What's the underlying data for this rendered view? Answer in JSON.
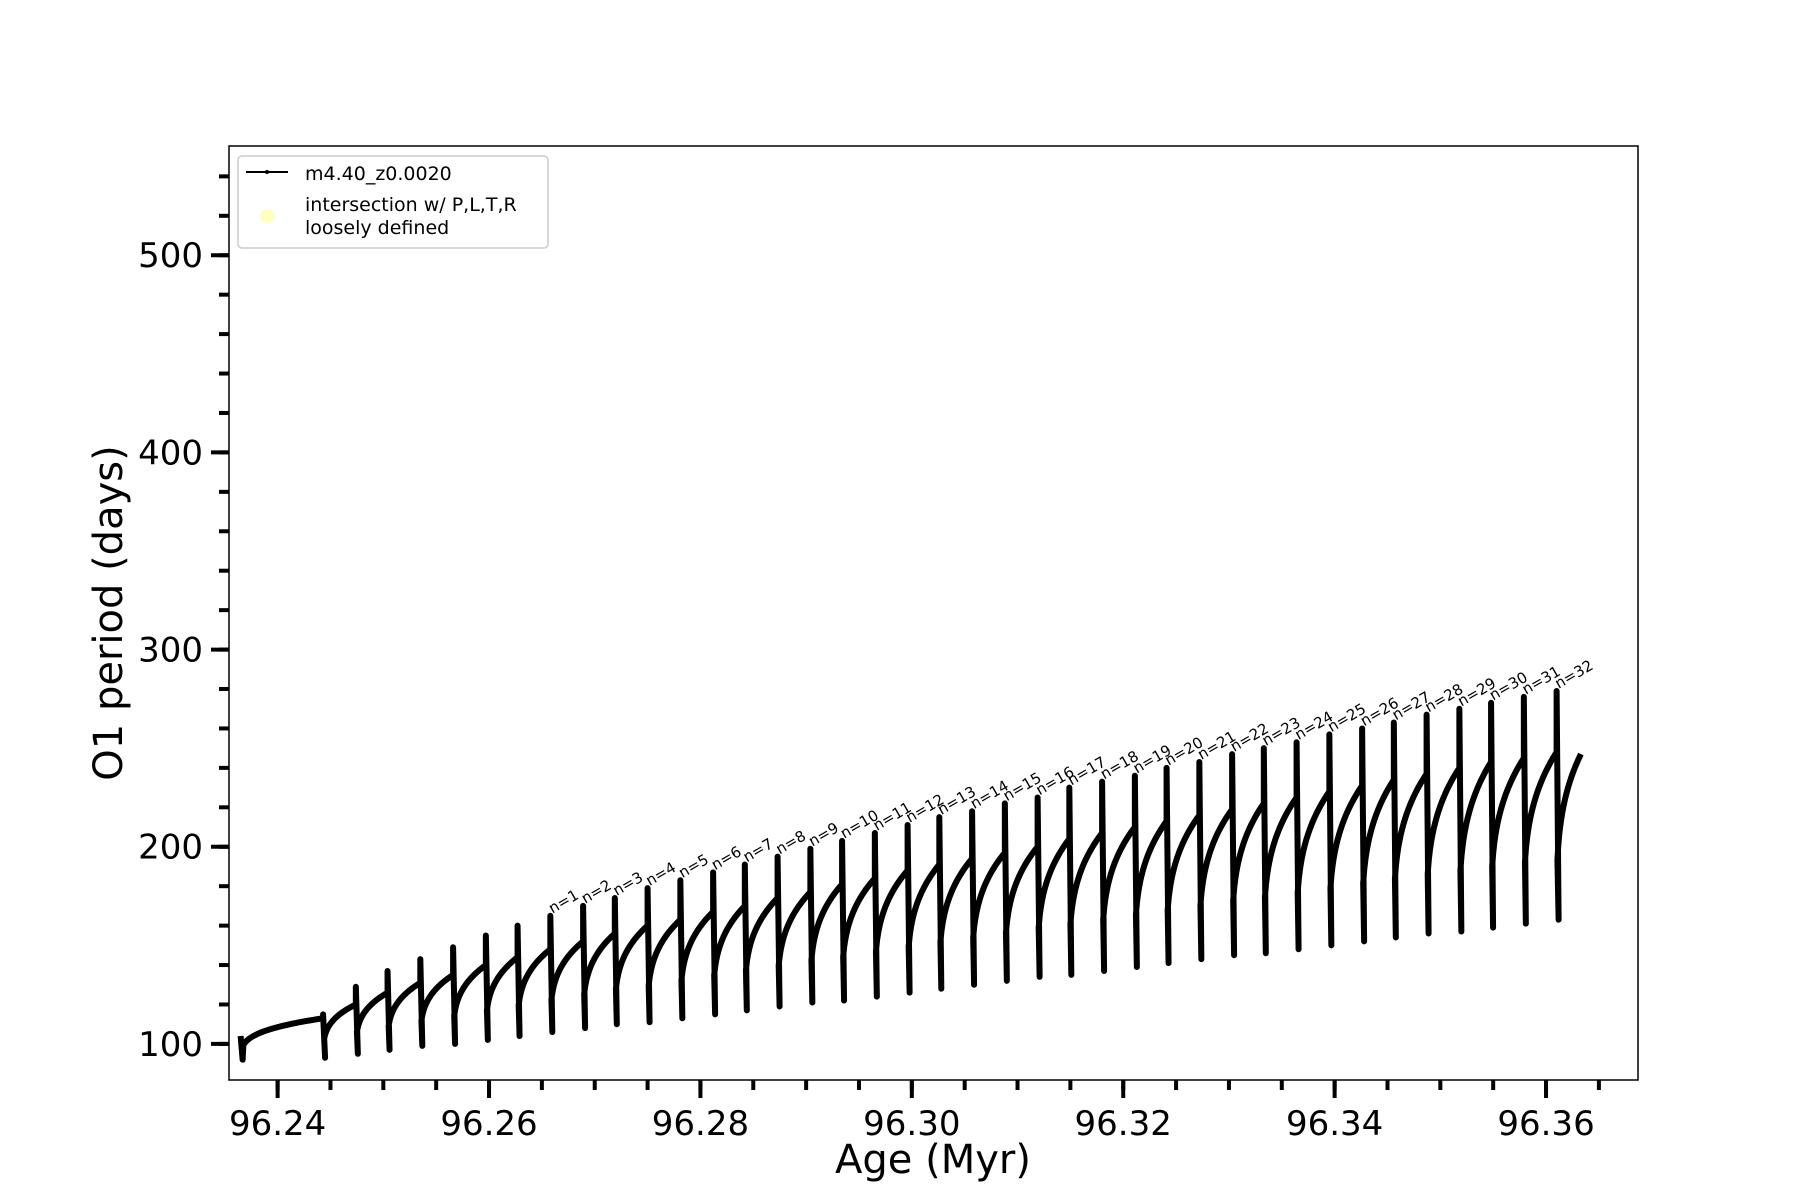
{
  "chart_data": {
    "type": "line",
    "title": "",
    "xlabel": "Age (Myr)",
    "ylabel": "O1 period (days)",
    "xlim": [
      96.2354,
      96.3687
    ],
    "ylim": [
      81.7,
      555.4
    ],
    "x_ticks": [
      96.24,
      96.26,
      96.28,
      96.3,
      96.32,
      96.34,
      96.36
    ],
    "x_tick_labels": [
      "96.24",
      "96.26",
      "96.28",
      "96.30",
      "96.32",
      "96.34",
      "96.36"
    ],
    "x_minor_step": 0.005,
    "y_ticks": [
      100,
      200,
      300,
      400,
      500
    ],
    "y_tick_labels": [
      "100",
      "200",
      "300",
      "400",
      "500"
    ],
    "y_minor_step": 20,
    "grid": false,
    "legend": {
      "placement": "top-left",
      "entries": [
        {
          "label": "m4.40_z0.0020",
          "marker": "line",
          "color": "#000000"
        },
        {
          "label_line1": "intersection w/ P,L,T,R",
          "label_line2": "loosely defined",
          "marker": "circle",
          "color": "#ffffc0"
        }
      ]
    },
    "series": [
      {
        "name": "m4.40_z0.0020",
        "color": "#000000",
        "start": {
          "age": 96.2365,
          "spike": 104,
          "min": 92
        },
        "end": {
          "age": 96.3633,
          "value": 247
        },
        "dip_ages": [
          96.2443,
          96.2474,
          96.2504,
          96.2535,
          96.2566,
          96.2597,
          96.2627,
          96.2658,
          96.2689,
          96.2719,
          96.275,
          96.2781,
          96.2812,
          96.2842,
          96.2873,
          96.2904,
          96.2934,
          96.2965,
          96.2996,
          96.3026,
          96.3057,
          96.3088,
          96.3119,
          96.3149,
          96.318,
          96.3211,
          96.3241,
          96.3272,
          96.3303,
          96.3333,
          96.3364,
          96.3395,
          96.3426,
          96.3456,
          96.3487,
          96.3518,
          96.3548,
          96.3579,
          96.361
        ],
        "plateau_before_dip": [
          113,
          120,
          126,
          131,
          135,
          140,
          144,
          148,
          152,
          156,
          160,
          163,
          167,
          170,
          174,
          177,
          181,
          184,
          188,
          191,
          194,
          197,
          200,
          204,
          207,
          210,
          213,
          216,
          219,
          222,
          225,
          228,
          231,
          234,
          237,
          240,
          243,
          245,
          248
        ],
        "spike_top": [
          115,
          129,
          137,
          143,
          149,
          155,
          160,
          165,
          170,
          174,
          179,
          183,
          187,
          191,
          195,
          199,
          203,
          207,
          211,
          215,
          218,
          222,
          225,
          230,
          233,
          236,
          240,
          243,
          247,
          250,
          253,
          257,
          260,
          263,
          267,
          270,
          273,
          276,
          279
        ],
        "dip_min": [
          93,
          95,
          97,
          99,
          100,
          102,
          104,
          106,
          108,
          110,
          111,
          113,
          115,
          117,
          119,
          121,
          122,
          124,
          126,
          128,
          130,
          132,
          134,
          135,
          137,
          139,
          141,
          143,
          145,
          146,
          148,
          150,
          152,
          154,
          156,
          157,
          159,
          161,
          163
        ]
      }
    ],
    "annotations": {
      "first_labeled_dip_index": 7,
      "labels": [
        "n=1",
        "n=2",
        "n=3",
        "n=4",
        "n=5",
        "n=6",
        "n=7",
        "n=8",
        "n=9",
        "n=10",
        "n=11",
        "n=12",
        "n=13",
        "n=14",
        "n=15",
        "n=16",
        "n=17",
        "n=18",
        "n=19",
        "n=20",
        "n=21",
        "n=22",
        "n=23",
        "n=24",
        "n=25",
        "n=26",
        "n=27",
        "n=28",
        "n=29",
        "n=30",
        "n=31",
        "n=32"
      ]
    }
  }
}
